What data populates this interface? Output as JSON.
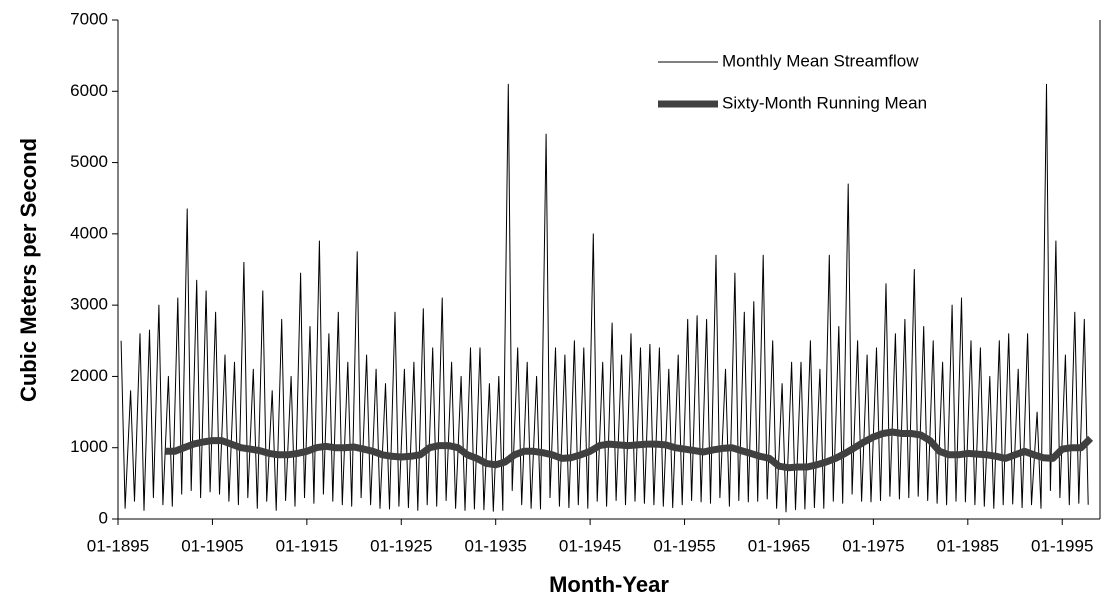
{
  "chart_data": {
    "type": "line",
    "xlabel": "Month-Year",
    "ylabel": "Cubic Meters per Second",
    "xlim": [
      "1895-01",
      "1999-01"
    ],
    "xticks": [
      {
        "value": "1895-01",
        "label": "01-1895"
      },
      {
        "value": "1905-01",
        "label": "01-1905"
      },
      {
        "value": "1915-01",
        "label": "01-1915"
      },
      {
        "value": "1925-01",
        "label": "01-1925"
      },
      {
        "value": "1935-01",
        "label": "01-1935"
      },
      {
        "value": "1945-01",
        "label": "01-1945"
      },
      {
        "value": "1955-01",
        "label": "01-1955"
      },
      {
        "value": "1965-01",
        "label": "01-1965"
      },
      {
        "value": "1975-01",
        "label": "01-1975"
      },
      {
        "value": "1985-01",
        "label": "01-1985"
      },
      {
        "value": "1995-01",
        "label": "01-1995"
      }
    ],
    "ylim": [
      0,
      7000
    ],
    "yticks": [
      0,
      1000,
      2000,
      3000,
      4000,
      5000,
      6000,
      7000
    ],
    "legend": "upper right",
    "series": [
      {
        "name": "Monthly Mean Streamflow",
        "color": "#000000",
        "width": 1,
        "x": [
          "1895-05",
          "1895-10",
          "1896-05",
          "1896-10",
          "1897-05",
          "1897-10",
          "1898-05",
          "1898-10",
          "1899-05",
          "1899-10",
          "1900-05",
          "1900-10",
          "1901-05",
          "1901-10",
          "1902-05",
          "1902-10",
          "1903-05",
          "1903-10",
          "1904-05",
          "1904-10",
          "1905-05",
          "1905-10",
          "1906-05",
          "1906-10",
          "1907-05",
          "1907-10",
          "1908-05",
          "1908-10",
          "1909-05",
          "1909-10",
          "1910-05",
          "1910-10",
          "1911-05",
          "1911-10",
          "1912-05",
          "1912-10",
          "1913-05",
          "1913-10",
          "1914-05",
          "1914-10",
          "1915-05",
          "1915-10",
          "1916-05",
          "1916-10",
          "1917-05",
          "1917-10",
          "1918-05",
          "1918-10",
          "1919-05",
          "1919-10",
          "1920-05",
          "1920-10",
          "1921-05",
          "1921-10",
          "1922-05",
          "1922-10",
          "1923-05",
          "1923-10",
          "1924-05",
          "1924-10",
          "1925-05",
          "1925-10",
          "1926-05",
          "1926-10",
          "1927-05",
          "1927-10",
          "1928-05",
          "1928-10",
          "1929-05",
          "1929-10",
          "1930-05",
          "1930-10",
          "1931-05",
          "1931-10",
          "1932-05",
          "1932-10",
          "1933-05",
          "1933-10",
          "1934-05",
          "1934-10",
          "1935-05",
          "1935-10",
          "1936-05",
          "1936-10",
          "1937-05",
          "1937-10",
          "1938-05",
          "1938-10",
          "1939-05",
          "1939-10",
          "1940-05",
          "1940-10",
          "1941-05",
          "1941-10",
          "1942-05",
          "1942-10",
          "1943-05",
          "1943-10",
          "1944-05",
          "1944-10",
          "1945-05",
          "1945-10",
          "1946-05",
          "1946-10",
          "1947-05",
          "1947-10",
          "1948-05",
          "1948-10",
          "1949-05",
          "1949-10",
          "1950-05",
          "1950-10",
          "1951-05",
          "1951-10",
          "1952-05",
          "1952-10",
          "1953-05",
          "1953-10",
          "1954-05",
          "1954-10",
          "1955-05",
          "1955-10",
          "1956-05",
          "1956-10",
          "1957-05",
          "1957-10",
          "1958-05",
          "1958-10",
          "1959-05",
          "1959-10",
          "1960-05",
          "1960-10",
          "1961-05",
          "1961-10",
          "1962-05",
          "1962-10",
          "1963-05",
          "1963-10",
          "1964-05",
          "1964-10",
          "1965-05",
          "1965-10",
          "1966-05",
          "1966-10",
          "1967-05",
          "1967-10",
          "1968-05",
          "1968-10",
          "1969-05",
          "1969-10",
          "1970-05",
          "1970-10",
          "1971-05",
          "1971-10",
          "1972-05",
          "1972-10",
          "1973-05",
          "1973-10",
          "1974-05",
          "1974-10",
          "1975-05",
          "1975-10",
          "1976-05",
          "1976-10",
          "1977-05",
          "1977-10",
          "1978-05",
          "1978-10",
          "1979-05",
          "1979-10",
          "1980-05",
          "1980-10",
          "1981-05",
          "1981-10",
          "1982-05",
          "1982-10",
          "1983-05",
          "1983-10",
          "1984-05",
          "1984-10",
          "1985-05",
          "1985-10",
          "1986-05",
          "1986-10",
          "1987-05",
          "1987-10",
          "1988-05",
          "1988-10",
          "1989-05",
          "1989-10",
          "1990-05",
          "1990-10",
          "1991-05",
          "1991-10",
          "1992-05",
          "1992-10",
          "1993-05",
          "1993-10",
          "1994-05",
          "1994-10",
          "1995-05",
          "1995-10",
          "1996-05",
          "1996-10",
          "1997-05",
          "1997-10"
        ],
        "values": [
          2500,
          150,
          1800,
          250,
          2600,
          120,
          2650,
          300,
          3000,
          200,
          2000,
          180,
          3100,
          350,
          4350,
          400,
          3350,
          300,
          3200,
          380,
          2900,
          350,
          2300,
          250,
          2200,
          200,
          3600,
          300,
          2100,
          150,
          3200,
          250,
          1800,
          120,
          2800,
          260,
          2000,
          180,
          3450,
          300,
          2700,
          220,
          3900,
          350,
          2600,
          250,
          2900,
          200,
          2200,
          180,
          3750,
          300,
          2300,
          200,
          2100,
          150,
          1900,
          140,
          2900,
          180,
          2100,
          160,
          2200,
          120,
          2950,
          200,
          2400,
          180,
          3100,
          260,
          2200,
          150,
          2000,
          120,
          2400,
          140,
          2400,
          130,
          1900,
          110,
          2000,
          120,
          6100,
          400,
          2400,
          200,
          2200,
          150,
          2000,
          140,
          5400,
          300,
          2400,
          180,
          2300,
          160,
          2500,
          200,
          2400,
          150,
          4000,
          250,
          2200,
          180,
          2750,
          260,
          2300,
          200,
          2600,
          250,
          2400,
          220,
          2450,
          200,
          2400,
          180,
          2100,
          160,
          2300,
          200,
          2800,
          260,
          2850,
          240,
          2800,
          220,
          3700,
          300,
          2100,
          180,
          3450,
          260,
          2900,
          240,
          3050,
          250,
          3700,
          280,
          2500,
          150,
          1900,
          100,
          2200,
          130,
          2200,
          140,
          2500,
          160,
          2100,
          150,
          3700,
          250,
          2700,
          220,
          4700,
          350,
          2500,
          250,
          2300,
          240,
          2400,
          260,
          3300,
          320,
          2600,
          280,
          2800,
          300,
          3500,
          320,
          2700,
          260,
          2500,
          220,
          2200,
          200,
          3000,
          250,
          3100,
          240,
          2500,
          200,
          2400,
          180,
          2000,
          150,
          2500,
          200,
          2600,
          210,
          2100,
          160,
          2600,
          200,
          1500,
          150,
          6100,
          400,
          3900,
          300,
          2300,
          200,
          2900,
          220,
          2800,
          200
        ]
      },
      {
        "name": "Sixty-Month Running Mean",
        "color": "#404040",
        "width": 7,
        "x": [
          "1900-01",
          "1901-01",
          "1902-01",
          "1903-01",
          "1904-01",
          "1905-01",
          "1906-01",
          "1907-01",
          "1908-01",
          "1909-01",
          "1910-01",
          "1911-01",
          "1912-01",
          "1913-01",
          "1914-01",
          "1915-01",
          "1916-01",
          "1917-01",
          "1918-01",
          "1919-01",
          "1920-01",
          "1921-01",
          "1922-01",
          "1923-01",
          "1924-01",
          "1925-01",
          "1926-01",
          "1927-01",
          "1928-01",
          "1929-01",
          "1930-01",
          "1931-01",
          "1932-01",
          "1933-01",
          "1934-01",
          "1935-01",
          "1936-01",
          "1937-01",
          "1938-01",
          "1939-01",
          "1940-01",
          "1941-01",
          "1942-01",
          "1943-01",
          "1944-01",
          "1945-01",
          "1946-01",
          "1947-01",
          "1948-01",
          "1949-01",
          "1950-01",
          "1951-01",
          "1952-01",
          "1953-01",
          "1954-01",
          "1955-01",
          "1956-01",
          "1957-01",
          "1958-01",
          "1959-01",
          "1960-01",
          "1961-01",
          "1962-01",
          "1963-01",
          "1964-01",
          "1965-01",
          "1966-01",
          "1967-01",
          "1968-01",
          "1969-01",
          "1970-01",
          "1971-01",
          "1972-01",
          "1973-01",
          "1974-01",
          "1975-01",
          "1976-01",
          "1977-01",
          "1978-01",
          "1979-01",
          "1980-01",
          "1981-01",
          "1982-01",
          "1983-01",
          "1984-01",
          "1985-01",
          "1986-01",
          "1987-01",
          "1988-01",
          "1989-01",
          "1990-01",
          "1991-01",
          "1992-01",
          "1993-01",
          "1994-01",
          "1995-01",
          "1996-01",
          "1997-01",
          "1998-01"
        ],
        "values": [
          950,
          950,
          1000,
          1050,
          1080,
          1100,
          1100,
          1050,
          1000,
          980,
          960,
          920,
          900,
          900,
          920,
          950,
          1000,
          1020,
          1000,
          1000,
          1010,
          980,
          950,
          900,
          880,
          870,
          880,
          900,
          1000,
          1030,
          1030,
          1000,
          900,
          850,
          780,
          760,
          800,
          900,
          950,
          950,
          930,
          900,
          850,
          860,
          900,
          950,
          1030,
          1050,
          1040,
          1030,
          1040,
          1050,
          1050,
          1040,
          1000,
          980,
          960,
          940,
          970,
          990,
          1000,
          960,
          920,
          880,
          850,
          740,
          720,
          730,
          730,
          760,
          800,
          850,
          920,
          1000,
          1080,
          1150,
          1200,
          1220,
          1200,
          1200,
          1180,
          1100,
          950,
          900,
          900,
          920,
          910,
          900,
          880,
          850,
          900,
          950,
          900,
          860,
          850,
          980,
          1000,
          1000,
          1130
        ]
      }
    ]
  }
}
